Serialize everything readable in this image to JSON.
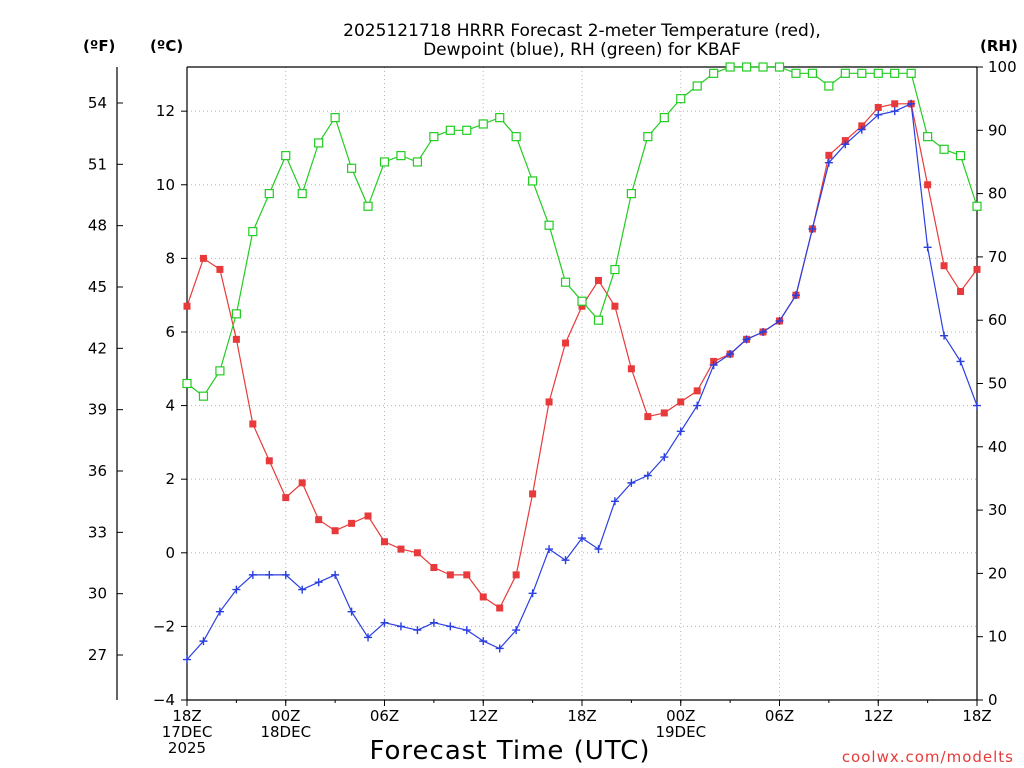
{
  "chart_data": {
    "type": "line",
    "title_line1": "2025121718 HRRR Forecast 2-meter Temperature (red),",
    "title_line2": "Dewpoint (blue), RH (green) for KBAF",
    "xlabel": "Forecast Time (UTC)",
    "credit": "coolwx.com/modelts",
    "unit_f": "(ºF)",
    "unit_c": "(ºC)",
    "unit_rh": "(RH)",
    "x_hours": [
      0,
      1,
      2,
      3,
      4,
      5,
      6,
      7,
      8,
      9,
      10,
      11,
      12,
      13,
      14,
      15,
      16,
      17,
      18,
      19,
      20,
      21,
      22,
      23,
      24,
      25,
      26,
      27,
      28,
      29,
      30,
      31,
      32,
      33,
      34,
      35,
      36,
      37,
      38,
      39,
      40,
      41,
      42,
      43,
      44,
      45,
      46,
      47,
      48
    ],
    "xlim": [
      0,
      48
    ],
    "ylim_c": [
      -4,
      13.2
    ],
    "ylim_rh": [
      0,
      100
    ],
    "x_ticks": [
      {
        "hour": 0,
        "lines": [
          "18Z",
          "17DEC",
          "2025"
        ]
      },
      {
        "hour": 6,
        "lines": [
          "00Z",
          "18DEC"
        ]
      },
      {
        "hour": 12,
        "lines": [
          "06Z"
        ]
      },
      {
        "hour": 18,
        "lines": [
          "12Z"
        ]
      },
      {
        "hour": 24,
        "lines": [
          "18Z"
        ]
      },
      {
        "hour": 30,
        "lines": [
          "00Z",
          "19DEC"
        ]
      },
      {
        "hour": 36,
        "lines": [
          "06Z"
        ]
      },
      {
        "hour": 42,
        "lines": [
          "12Z"
        ]
      },
      {
        "hour": 48,
        "lines": [
          "18Z"
        ]
      }
    ],
    "y_ticks_c": [
      "-4",
      "-2",
      "0",
      "2",
      "4",
      "6",
      "8",
      "10",
      "12"
    ],
    "y_ticks_f": [
      "27",
      "30",
      "33",
      "36",
      "39",
      "42",
      "45",
      "48",
      "51",
      "54"
    ],
    "y_ticks_rh": [
      "0",
      "10",
      "20",
      "30",
      "40",
      "50",
      "60",
      "70",
      "80",
      "90",
      "100"
    ],
    "grid": true,
    "series": [
      {
        "name": "Temperature",
        "unit": "C",
        "color": "#e83a3a",
        "marker": "square-filled",
        "values": [
          6.7,
          8.0,
          7.7,
          5.8,
          3.5,
          2.5,
          1.5,
          1.9,
          0.9,
          0.6,
          0.8,
          1.0,
          0.3,
          0.1,
          0.0,
          -0.4,
          -0.6,
          -0.6,
          -1.2,
          -1.5,
          -0.6,
          1.6,
          4.1,
          5.7,
          6.7,
          7.4,
          6.7,
          5.0,
          3.7,
          3.8,
          4.1,
          4.4,
          5.2,
          5.4,
          5.8,
          6.0,
          6.3,
          7.0,
          8.8,
          10.8,
          11.2,
          11.6,
          12.1,
          12.2,
          12.2,
          10.0,
          7.8,
          7.1,
          7.7
        ]
      },
      {
        "name": "Dewpoint",
        "unit": "C",
        "color": "#2a3fe0",
        "marker": "plus",
        "values": [
          -2.9,
          -2.4,
          -1.6,
          -1.0,
          -0.6,
          -0.6,
          -0.6,
          -1.0,
          -0.8,
          -0.6,
          -1.6,
          -2.3,
          -1.9,
          -2.0,
          -2.1,
          -1.9,
          -2.0,
          -2.1,
          -2.4,
          -2.6,
          -2.1,
          -1.1,
          0.1,
          -0.2,
          0.4,
          0.1,
          1.4,
          1.9,
          2.1,
          2.6,
          3.3,
          4.0,
          5.1,
          5.4,
          5.8,
          6.0,
          6.3,
          7.0,
          8.8,
          10.6,
          11.1,
          11.5,
          11.9,
          12.0,
          12.2,
          8.3,
          5.9,
          5.2,
          4.0
        ]
      },
      {
        "name": "RH",
        "unit": "%",
        "color": "#22cc22",
        "marker": "square-open",
        "values": [
          50,
          48,
          52,
          61,
          74,
          80,
          86,
          80,
          88,
          92,
          84,
          78,
          85,
          86,
          85,
          89,
          90,
          90,
          91,
          92,
          89,
          82,
          75,
          66,
          63,
          60,
          68,
          80,
          89,
          92,
          95,
          97,
          99,
          100,
          100,
          100,
          100,
          99,
          99,
          97,
          99,
          99,
          99,
          99,
          99,
          89,
          87,
          86,
          78
        ]
      }
    ]
  }
}
